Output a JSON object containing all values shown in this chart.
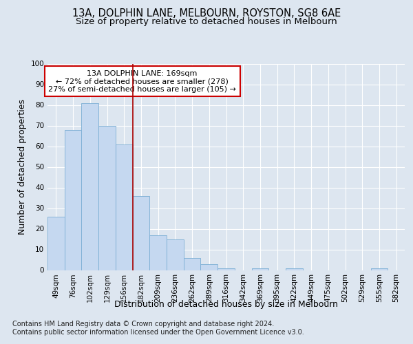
{
  "title": "13A, DOLPHIN LANE, MELBOURN, ROYSTON, SG8 6AE",
  "subtitle": "Size of property relative to detached houses in Melbourn",
  "xlabel": "Distribution of detached houses by size in Melbourn",
  "ylabel": "Number of detached properties",
  "categories": [
    "49sqm",
    "76sqm",
    "102sqm",
    "129sqm",
    "156sqm",
    "182sqm",
    "209sqm",
    "236sqm",
    "262sqm",
    "289sqm",
    "316sqm",
    "342sqm",
    "369sqm",
    "395sqm",
    "422sqm",
    "449sqm",
    "475sqm",
    "502sqm",
    "529sqm",
    "555sqm",
    "582sqm"
  ],
  "values": [
    26,
    68,
    81,
    70,
    61,
    36,
    17,
    15,
    6,
    3,
    1,
    0,
    1,
    0,
    1,
    0,
    0,
    0,
    0,
    1,
    0
  ],
  "bar_color": "#c5d8f0",
  "bar_edge_color": "#7aadd4",
  "vline_x": 4.5,
  "vline_color": "#aa0000",
  "annotation_text": "13A DOLPHIN LANE: 169sqm\n← 72% of detached houses are smaller (278)\n27% of semi-detached houses are larger (105) →",
  "annotation_box_color": "#ffffff",
  "annotation_box_edge": "#cc0000",
  "ylim": [
    0,
    100
  ],
  "yticks": [
    0,
    10,
    20,
    30,
    40,
    50,
    60,
    70,
    80,
    90,
    100
  ],
  "footnote": "Contains HM Land Registry data © Crown copyright and database right 2024.\nContains public sector information licensed under the Open Government Licence v3.0.",
  "background_color": "#dde6f0",
  "plot_bg_color": "#dde6f0",
  "grid_color": "#ffffff",
  "title_fontsize": 10.5,
  "subtitle_fontsize": 9.5,
  "axis_label_fontsize": 9,
  "tick_fontsize": 7.5,
  "footnote_fontsize": 7
}
